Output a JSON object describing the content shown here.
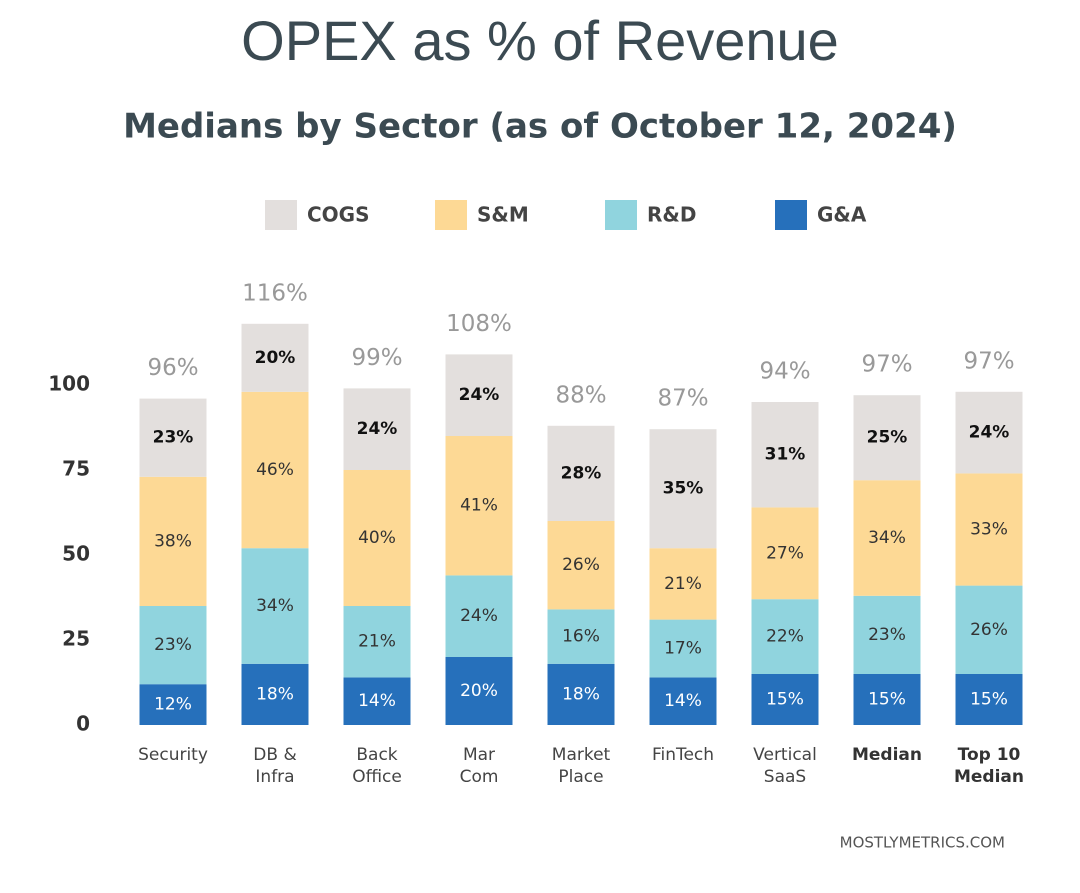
{
  "chart_data": {
    "type": "stacked_bar",
    "title": "OPEX as % of Revenue",
    "subtitle": "Medians by Sector (as of October 12, 2024)",
    "categories": [
      "Security",
      "DB &\nInfra",
      "Back\nOffice",
      "Mar\nCom",
      "Market\nPlace",
      "FinTech",
      "Vertical\nSaaS",
      "Median",
      "Top 10\nMedian"
    ],
    "emphasis": [
      false,
      false,
      false,
      false,
      false,
      false,
      false,
      true,
      true
    ],
    "series": [
      {
        "name": "COGS",
        "color": "#e3dfdd",
        "values": [
          23,
          20,
          24,
          24,
          28,
          35,
          31,
          25,
          24
        ],
        "value_labels": [
          "23%",
          "20%",
          "24%",
          "24%",
          "28%",
          "35%",
          "31%",
          "25%",
          "24%"
        ]
      },
      {
        "name": "S&M",
        "color": "#fdd995",
        "values": [
          38,
          46,
          40,
          41,
          26,
          21,
          27,
          34,
          33
        ],
        "value_labels": [
          "38%",
          "46%",
          "40%",
          "41%",
          "26%",
          "21%",
          "27%",
          "34%",
          "33%"
        ]
      },
      {
        "name": "R&D",
        "color": "#90d4de",
        "values": [
          23,
          34,
          21,
          24,
          16,
          17,
          22,
          23,
          26
        ],
        "value_labels": [
          "23%",
          "34%",
          "21%",
          "24%",
          "16%",
          "17%",
          "22%",
          "23%",
          "26%"
        ]
      },
      {
        "name": "G&A",
        "color": "#2670bb",
        "values": [
          12,
          18,
          14,
          20,
          18,
          14,
          15,
          15,
          15
        ],
        "value_labels": [
          "12%",
          "18%",
          "14%",
          "20%",
          "18%",
          "14%",
          "15%",
          "15%",
          "15%"
        ]
      }
    ],
    "totals": [
      96,
      116,
      99,
      108,
      88,
      87,
      94,
      97,
      97
    ],
    "total_labels": [
      "96%",
      "116%",
      "99%",
      "108%",
      "88%",
      "87%",
      "94%",
      "97%",
      "97%"
    ],
    "ylim": [
      0,
      125
    ],
    "yticks": [
      0,
      25,
      50,
      75,
      100
    ],
    "source": "MOSTLYMETRICS.COM"
  }
}
